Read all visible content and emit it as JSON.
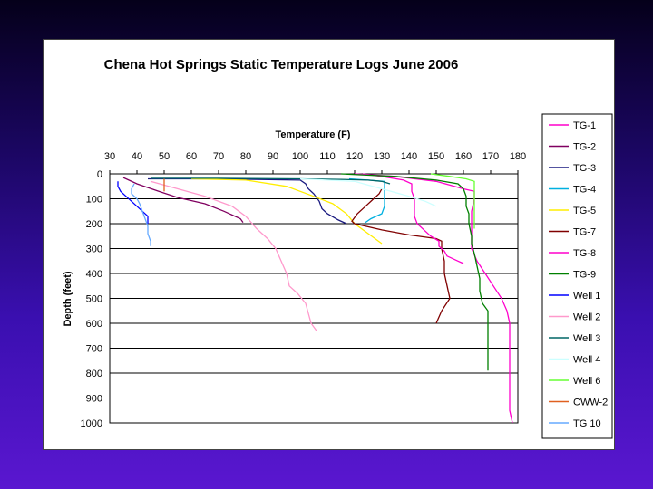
{
  "chart_data": {
    "type": "line",
    "title": "Chena Hot Springs Static Temperature Logs June 2006",
    "xlabel": "Temperature (F)",
    "ylabel": "Depth (feet)",
    "xlim": [
      30,
      180
    ],
    "ylim": [
      0,
      1000
    ],
    "y_inverted": true,
    "x_ticks": [
      30,
      40,
      50,
      60,
      70,
      80,
      90,
      100,
      110,
      120,
      130,
      140,
      150,
      160,
      170,
      180
    ],
    "y_ticks": [
      0,
      100,
      200,
      300,
      400,
      500,
      600,
      700,
      800,
      900,
      1000
    ],
    "grid": "horizontal",
    "legend_position": "right",
    "series": [
      {
        "name": "TG-1",
        "color": "#ff00cc",
        "points": [
          [
            120,
            0
          ],
          [
            135,
            10
          ],
          [
            150,
            30
          ],
          [
            160,
            60
          ],
          [
            164,
            70
          ],
          [
            164,
            100
          ],
          [
            163,
            150
          ],
          [
            163,
            200
          ],
          [
            163,
            250
          ],
          [
            163,
            300
          ],
          [
            165,
            350
          ],
          [
            168,
            400
          ],
          [
            171,
            450
          ],
          [
            174,
            500
          ],
          [
            176,
            550
          ],
          [
            177,
            600
          ],
          [
            177,
            700
          ],
          [
            177,
            800
          ],
          [
            177,
            900
          ],
          [
            177,
            950
          ],
          [
            178,
            1000
          ]
        ]
      },
      {
        "name": "TG-2",
        "color": "#800060",
        "points": [
          [
            35,
            15
          ],
          [
            40,
            40
          ],
          [
            48,
            70
          ],
          [
            55,
            95
          ],
          [
            65,
            120
          ],
          [
            72,
            150
          ],
          [
            78,
            180
          ],
          [
            79,
            195
          ]
        ]
      },
      {
        "name": "TG-3",
        "color": "#1a1a80",
        "points": [
          [
            44,
            20
          ],
          [
            70,
            20
          ],
          [
            100,
            25
          ],
          [
            102,
            40
          ],
          [
            103,
            60
          ],
          [
            105,
            80
          ],
          [
            107,
            110
          ],
          [
            108,
            140
          ],
          [
            110,
            160
          ],
          [
            114,
            185
          ],
          [
            117,
            200
          ]
        ]
      },
      {
        "name": "TG-4",
        "color": "#00b0e0",
        "points": [
          [
            118,
            20
          ],
          [
            125,
            25
          ],
          [
            131,
            30
          ],
          [
            131,
            80
          ],
          [
            131,
            130
          ],
          [
            130,
            160
          ],
          [
            126,
            180
          ],
          [
            124,
            195
          ]
        ]
      },
      {
        "name": "TG-5",
        "color": "#ffee00",
        "points": [
          [
            60,
            20
          ],
          [
            80,
            25
          ],
          [
            95,
            50
          ],
          [
            105,
            90
          ],
          [
            112,
            120
          ],
          [
            117,
            160
          ],
          [
            120,
            200
          ],
          [
            125,
            240
          ],
          [
            130,
            280
          ]
        ]
      },
      {
        "name": "TG-7",
        "color": "#800000",
        "points": [
          [
            130,
            60
          ],
          [
            129,
            80
          ],
          [
            127,
            100
          ],
          [
            124,
            130
          ],
          [
            121,
            160
          ],
          [
            119,
            190
          ],
          [
            120,
            200
          ],
          [
            130,
            225
          ],
          [
            140,
            245
          ],
          [
            150,
            260
          ],
          [
            152,
            270
          ],
          [
            152,
            300
          ],
          [
            153,
            350
          ],
          [
            153,
            400
          ],
          [
            154,
            450
          ],
          [
            155,
            500
          ],
          [
            152,
            550
          ],
          [
            150,
            600
          ]
        ]
      },
      {
        "name": "TG-8",
        "color": "#ff00cc",
        "points": [
          [
            123,
            0
          ],
          [
            130,
            10
          ],
          [
            138,
            25
          ],
          [
            141,
            40
          ],
          [
            141,
            70
          ],
          [
            142,
            100
          ],
          [
            142,
            140
          ],
          [
            142,
            170
          ],
          [
            143,
            200
          ],
          [
            146,
            230
          ],
          [
            148,
            250
          ],
          [
            151,
            270
          ],
          [
            151,
            290
          ],
          [
            153,
            310
          ],
          [
            154,
            330
          ],
          [
            158,
            350
          ],
          [
            160,
            360
          ]
        ]
      },
      {
        "name": "TG-9",
        "color": "#008000",
        "points": [
          [
            115,
            0
          ],
          [
            135,
            10
          ],
          [
            150,
            25
          ],
          [
            158,
            40
          ],
          [
            160,
            60
          ],
          [
            161,
            90
          ],
          [
            161,
            130
          ],
          [
            162,
            160
          ],
          [
            162,
            200
          ],
          [
            163,
            250
          ],
          [
            163,
            280
          ],
          [
            164,
            320
          ],
          [
            165,
            370
          ],
          [
            166,
            420
          ],
          [
            166,
            470
          ],
          [
            167,
            520
          ],
          [
            169,
            550
          ],
          [
            169,
            600
          ],
          [
            169,
            650
          ],
          [
            169,
            700
          ],
          [
            169,
            750
          ],
          [
            169,
            790
          ]
        ]
      },
      {
        "name": "Well 1",
        "color": "#0000ff",
        "points": [
          [
            33,
            30
          ],
          [
            33,
            50
          ],
          [
            34,
            70
          ],
          [
            36,
            90
          ],
          [
            38,
            110
          ],
          [
            40,
            130
          ],
          [
            42,
            150
          ],
          [
            44,
            170
          ],
          [
            44,
            190
          ],
          [
            44,
            200
          ]
        ]
      },
      {
        "name": "Well 2",
        "color": "#ff99cc",
        "points": [
          [
            45,
            30
          ],
          [
            55,
            60
          ],
          [
            65,
            90
          ],
          [
            75,
            130
          ],
          [
            80,
            170
          ],
          [
            84,
            220
          ],
          [
            88,
            260
          ],
          [
            91,
            300
          ],
          [
            93,
            350
          ],
          [
            95,
            400
          ],
          [
            96,
            450
          ],
          [
            99,
            480
          ],
          [
            102,
            520
          ],
          [
            103,
            560
          ],
          [
            104,
            600
          ],
          [
            106,
            630
          ]
        ]
      },
      {
        "name": "Well 3",
        "color": "#006666",
        "points": [
          [
            45,
            18
          ],
          [
            70,
            18
          ],
          [
            100,
            20
          ],
          [
            115,
            22
          ],
          [
            125,
            25
          ],
          [
            130,
            30
          ],
          [
            133,
            40
          ]
        ]
      },
      {
        "name": "Well 4",
        "color": "#ccffff",
        "points": [
          [
            100,
            20
          ],
          [
            120,
            30
          ],
          [
            130,
            60
          ],
          [
            140,
            90
          ],
          [
            146,
            110
          ],
          [
            150,
            130
          ]
        ]
      },
      {
        "name": "Well 6",
        "color": "#66ff33",
        "points": [
          [
            148,
            0
          ],
          [
            155,
            10
          ],
          [
            161,
            20
          ],
          [
            164,
            30
          ],
          [
            164,
            60
          ],
          [
            164,
            100
          ],
          [
            164,
            150
          ],
          [
            164,
            200
          ],
          [
            164,
            220
          ]
        ]
      },
      {
        "name": "CWW-2",
        "color": "#e06020",
        "points": [
          [
            50,
            20
          ],
          [
            50,
            40
          ],
          [
            50,
            60
          ],
          [
            50,
            70
          ]
        ]
      },
      {
        "name": "TG 10",
        "color": "#66aaff",
        "points": [
          [
            39,
            40
          ],
          [
            38,
            60
          ],
          [
            38,
            80
          ],
          [
            40,
            100
          ],
          [
            41,
            120
          ],
          [
            42,
            150
          ],
          [
            43,
            180
          ],
          [
            44,
            210
          ],
          [
            44,
            240
          ],
          [
            45,
            270
          ],
          [
            45,
            290
          ]
        ]
      }
    ]
  }
}
